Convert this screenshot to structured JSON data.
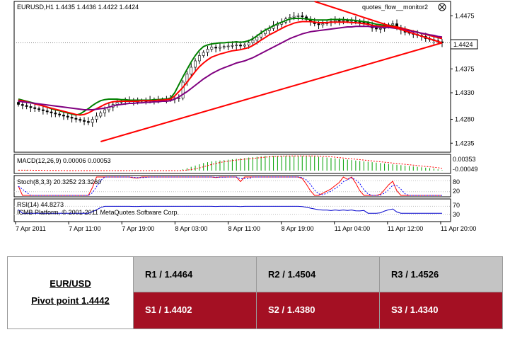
{
  "chart_data": {
    "type": "candlestick",
    "symbol_header": "EURUSD,H1  1.4435 1.4436 1.4422 1.4424",
    "indicator_name": "quotes_flow__monitor2",
    "current_price": "1.4424",
    "price_axis": {
      "ylim": [
        1.4218,
        1.4502
      ],
      "ticks": [
        "1.4475",
        "1.4424",
        "1.4375",
        "1.4330",
        "1.4280",
        "1.4235"
      ]
    },
    "x_ticks": [
      "7 Apr 2011",
      "7 Apr 11:00",
      "7 Apr 19:00",
      "8 Apr 03:00",
      "8 Apr 11:00",
      "8 Apr 19:00",
      "11 Apr 04:00",
      "11 Apr 12:00",
      "11 Apr 20:00"
    ],
    "close_series": [
      1.4308,
      1.4306,
      1.4304,
      1.4302,
      1.43,
      1.4298,
      1.4296,
      1.4294,
      1.4292,
      1.429,
      1.4288,
      1.4286,
      1.4284,
      1.4282,
      1.428,
      1.4278,
      1.4276,
      1.4274,
      1.428,
      1.4286,
      1.4292,
      1.4298,
      1.4303,
      1.4308,
      1.4312,
      1.4314,
      1.4315,
      1.4315,
      1.4314,
      1.4314,
      1.4315,
      1.4315,
      1.4316,
      1.4316,
      1.4317,
      1.4317,
      1.4318,
      1.4318,
      1.4319,
      1.432,
      1.435,
      1.4365,
      1.4378,
      1.439,
      1.44,
      1.4406,
      1.4412,
      1.4416,
      1.4414,
      1.4416,
      1.4417,
      1.4418,
      1.4419,
      1.442,
      1.4418,
      1.442,
      1.4424,
      1.4429,
      1.4435,
      1.4441,
      1.4447,
      1.4451,
      1.4457,
      1.4459,
      1.4463,
      1.4469,
      1.4472,
      1.4474,
      1.4475,
      1.4473,
      1.4468,
      1.4463,
      1.446,
      1.4458,
      1.446,
      1.4462,
      1.4464,
      1.4466,
      1.4465,
      1.4466,
      1.4465,
      1.4466,
      1.4464,
      1.4463,
      1.4462,
      1.4458,
      1.4452,
      1.445,
      1.4451,
      1.4455,
      1.4458,
      1.446,
      1.4453,
      1.4448,
      1.4444,
      1.4442,
      1.444,
      1.4438,
      1.4436,
      1.4432,
      1.443,
      1.4428,
      1.4426,
      1.4424
    ],
    "moving_averages": [
      {
        "color": "#008000",
        "values": [
          1.4318,
          1.4316,
          1.4314,
          1.4312,
          1.431,
          1.4308,
          1.4305,
          1.4303,
          1.43,
          1.4298,
          1.4296,
          1.4294,
          1.4292,
          1.429,
          1.4288,
          1.429,
          1.4295,
          1.43,
          1.4306,
          1.4311,
          1.4315,
          1.4317,
          1.4318,
          1.4318,
          1.4318,
          1.4317,
          1.4317,
          1.4316,
          1.4316,
          1.4316,
          1.4316,
          1.4316,
          1.4316,
          1.4317,
          1.4317,
          1.4318,
          1.4318,
          1.432,
          1.433,
          1.4345,
          1.436,
          1.4374,
          1.4388,
          1.44,
          1.441,
          1.4417,
          1.442,
          1.4422,
          1.4423,
          1.4424,
          1.4424,
          1.4425,
          1.4425,
          1.4426,
          1.4425,
          1.4426,
          1.4428,
          1.4432,
          1.4437,
          1.4443,
          1.4448,
          1.4452,
          1.4456,
          1.446,
          1.4463,
          1.4466,
          1.4469,
          1.447,
          1.447,
          1.447,
          1.4469,
          1.4468,
          1.4467,
          1.4467,
          1.4467,
          1.4467,
          1.4468,
          1.4468,
          1.4468,
          1.4468,
          1.4467,
          1.4467,
          1.4466,
          1.4465,
          1.4464,
          1.4463,
          1.4461,
          1.4459,
          1.4458,
          1.4457,
          1.4457,
          1.4456,
          1.4454,
          1.4452,
          1.445,
          1.4448,
          1.4446,
          1.4444,
          1.4442,
          1.444,
          1.4438,
          1.4436,
          1.4434,
          1.4432
        ]
      },
      {
        "color": "#ff0000",
        "values": [
          1.4316,
          1.4315,
          1.4313,
          1.4311,
          1.4309,
          1.4307,
          1.4305,
          1.4303,
          1.4301,
          1.4299,
          1.4297,
          1.4295,
          1.4293,
          1.4291,
          1.4289,
          1.4288,
          1.4289,
          1.4292,
          1.4296,
          1.43,
          1.4304,
          1.4308,
          1.4311,
          1.4313,
          1.4314,
          1.4314,
          1.4314,
          1.4314,
          1.4314,
          1.4314,
          1.4315,
          1.4315,
          1.4315,
          1.4315,
          1.4316,
          1.4316,
          1.4317,
          1.4318,
          1.4324,
          1.4332,
          1.434,
          1.435,
          1.436,
          1.437,
          1.4379,
          1.4386,
          1.4392,
          1.4397,
          1.44,
          1.4403,
          1.4405,
          1.4407,
          1.4409,
          1.441,
          1.4411,
          1.4413,
          1.4415,
          1.4419,
          1.4424,
          1.4429,
          1.4434,
          1.4439,
          1.4443,
          1.4447,
          1.4451,
          1.4455,
          1.4458,
          1.4461,
          1.4463,
          1.4464,
          1.4464,
          1.4464,
          1.4463,
          1.4462,
          1.4462,
          1.4462,
          1.4463,
          1.4463,
          1.4463,
          1.4463,
          1.4463,
          1.4462,
          1.4462,
          1.4461,
          1.446,
          1.4459,
          1.4457,
          1.4456,
          1.4455,
          1.4455,
          1.4455,
          1.4455,
          1.4454,
          1.4452,
          1.445,
          1.4448,
          1.4446,
          1.4444,
          1.4442,
          1.444,
          1.4438,
          1.4436,
          1.4434,
          1.4432
        ]
      },
      {
        "color": "#800080",
        "values": [
          1.4314,
          1.4313,
          1.4312,
          1.4311,
          1.431,
          1.4309,
          1.4308,
          1.4307,
          1.4306,
          1.4305,
          1.4304,
          1.4303,
          1.4302,
          1.4301,
          1.43,
          1.4299,
          1.4298,
          1.4298,
          1.4298,
          1.4299,
          1.43,
          1.4301,
          1.4303,
          1.4305,
          1.4307,
          1.4308,
          1.4309,
          1.431,
          1.431,
          1.4311,
          1.4311,
          1.4312,
          1.4312,
          1.4313,
          1.4313,
          1.4314,
          1.4314,
          1.4315,
          1.4318,
          1.4322,
          1.4327,
          1.4332,
          1.4338,
          1.4344,
          1.435,
          1.4356,
          1.4361,
          1.4366,
          1.437,
          1.4374,
          1.4377,
          1.438,
          1.4383,
          1.4386,
          1.4388,
          1.439,
          1.4393,
          1.4396,
          1.44,
          1.4404,
          1.4408,
          1.4412,
          1.4416,
          1.442,
          1.4424,
          1.4428,
          1.4432,
          1.4435,
          1.4438,
          1.4441,
          1.4443,
          1.4445,
          1.4446,
          1.4447,
          1.4448,
          1.4449,
          1.445,
          1.4451,
          1.4452,
          1.4453,
          1.4454,
          1.4454,
          1.4455,
          1.4455,
          1.4455,
          1.4455,
          1.4454,
          1.4454,
          1.4453,
          1.4453,
          1.4453,
          1.4452,
          1.4451,
          1.445,
          1.4448,
          1.4447,
          1.4445,
          1.4444,
          1.4442,
          1.4441,
          1.4439,
          1.4438,
          1.4436,
          1.4435
        ]
      }
    ],
    "trendlines": [
      {
        "color": "#ff0000",
        "from": [
          20,
          1.4238
        ],
        "to": [
          103,
          1.4424
        ]
      },
      {
        "color": "#ff0000",
        "from": [
          72,
          1.4502
        ],
        "to": [
          103,
          1.4424
        ]
      }
    ],
    "macd": {
      "label": "MACD(12,26,9) 0.00006 0.00053",
      "axis_top": "0.00353",
      "axis_bottom": "-0.00049",
      "histogram": [
        0.0001,
        0.0001,
        0.0001,
        8e-05,
        5e-05,
        3e-05,
        2e-05,
        1e-05,
        0,
        0,
        0,
        0,
        0,
        0,
        0,
        0,
        0,
        0,
        0,
        0,
        0,
        0,
        0,
        0,
        0,
        0,
        0,
        0,
        0,
        0,
        0,
        0,
        0,
        0,
        0,
        0,
        0,
        0,
        0,
        0,
        0.0003,
        0.0006,
        0.0009,
        0.0012,
        0.0015,
        0.0018,
        0.002,
        0.0022,
        0.0023,
        0.0024,
        0.0025,
        0.0026,
        0.0027,
        0.0028,
        0.0029,
        0.003,
        0.0031,
        0.0032,
        0.0033,
        0.0034,
        0.0035,
        0.0035,
        0.0035,
        0.0035,
        0.0035,
        0.0035,
        0.0035,
        0.0035,
        0.0035,
        0.0035,
        0.0035,
        0.0035,
        0.0034,
        0.0033,
        0.0032,
        0.0031,
        0.003,
        0.0029,
        0.0028,
        0.0027,
        0.0026,
        0.0025,
        0.0024,
        0.0023,
        0.0022,
        0.0021,
        0.002,
        0.0019,
        0.0018,
        0.0017,
        0.0016,
        0.0015,
        0.0014,
        0.0013,
        0.0012,
        0.0011,
        0.001,
        0.0009,
        0.0008,
        0.0007,
        0.0006,
        0.0005,
        0.0003,
        0.0001
      ]
    },
    "stoch": {
      "label": "Stoch(8,3,3) 20.3252 23.3260",
      "axis_labels": [
        "80",
        "20"
      ]
    },
    "rsi": {
      "label": "RSI(14) 44.8273",
      "axis_labels": [
        "70",
        "30"
      ]
    },
    "copyright": "ICMB Platform, © 2001-2011 MetaQuotes Software Corp."
  },
  "pivot_table": {
    "symbol": "EUR/USD",
    "pivot_label": "Pivot point 1.4442",
    "resistance": [
      "R1 / 1.4464",
      "R2 / 1.4504",
      "R3 / 1.4526"
    ],
    "support": [
      "S1 / 1.4402",
      "S2 / 1.4380",
      "S3 / 1.4340"
    ]
  }
}
